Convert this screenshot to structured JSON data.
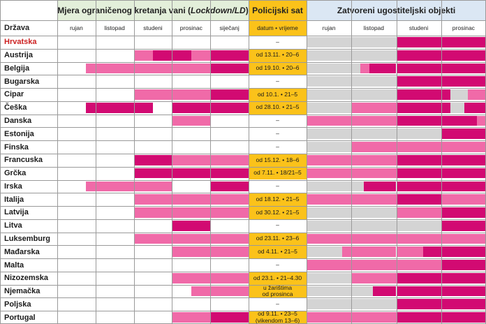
{
  "headers": {
    "group_lockdown_prefix": "Mjera ograničenog kretanja vani (",
    "group_lockdown_italic": "Lockdown/LD",
    "group_lockdown_suffix": ")",
    "group_curfew": "Policijski sat",
    "group_closed": "Zatvoreni ugostiteljski objekti",
    "country_col": "Država",
    "curfew_sub": "datum • vrijeme",
    "months_lockdown": [
      "rujan",
      "listopad",
      "studeni",
      "prosinac",
      "siječanj"
    ],
    "months_closed": [
      "rujan",
      "listopad",
      "studeni",
      "prosinac"
    ]
  },
  "colors": {
    "lockdown_header_bg": "#e3efda",
    "curfew_header_bg": "#fbc21a",
    "closed_header_bg": "#dbe7f4",
    "curfew_cell_bg": "#fbc21a",
    "light_pink": "#f06aa8",
    "magenta": "#d20a72",
    "grey": "#d4d4d4",
    "white": "#ffffff",
    "highlight_text": "#cc2121"
  },
  "rows": [
    {
      "country": "Hrvatska",
      "highlight": true,
      "curfew": [
        "–"
      ],
      "lockdown": [],
      "closed": [
        [
          0,
          0.5,
          "G"
        ],
        [
          0.5,
          0.75,
          "M"
        ],
        [
          0.75,
          1,
          "M"
        ]
      ]
    },
    {
      "country": "Austrija",
      "curfew": [
        "od 13.11. • 20–6"
      ],
      "lockdown": [
        [
          0.4,
          0.5,
          "L"
        ],
        [
          0.5,
          0.7,
          "M"
        ],
        [
          0.7,
          0.8,
          "L"
        ],
        [
          0.8,
          1,
          "M"
        ]
      ],
      "closed": [
        [
          0,
          0.5,
          "G"
        ],
        [
          0.5,
          0.75,
          "M"
        ],
        [
          0.75,
          1,
          "M"
        ]
      ]
    },
    {
      "country": "Belgija",
      "curfew": [
        "od 19.10. • 20–6"
      ],
      "lockdown": [
        [
          0.15,
          0.4,
          "L"
        ],
        [
          0.4,
          0.6,
          "L"
        ],
        [
          0.6,
          0.8,
          "L"
        ],
        [
          0.8,
          1,
          "M"
        ]
      ],
      "closed": [
        [
          0,
          0.3,
          "G"
        ],
        [
          0.3,
          0.35,
          "L"
        ],
        [
          0.35,
          0.5,
          "M"
        ],
        [
          0.5,
          1,
          "M"
        ]
      ]
    },
    {
      "country": "Bugarska",
      "curfew": [
        "–"
      ],
      "lockdown": [],
      "closed": [
        [
          0,
          0.5,
          "G"
        ],
        [
          0.5,
          0.75,
          "M"
        ],
        [
          0.75,
          1,
          "M"
        ]
      ]
    },
    {
      "country": "Cipar",
      "curfew": [
        "od 10.1. • 21–5"
      ],
      "lockdown": [
        [
          0.4,
          0.8,
          "L"
        ],
        [
          0.8,
          1,
          "M"
        ]
      ],
      "closed": [
        [
          0,
          0.5,
          "G"
        ],
        [
          0.5,
          0.8,
          "M"
        ],
        [
          0.8,
          0.9,
          "G"
        ],
        [
          0.9,
          1,
          "L"
        ]
      ]
    },
    {
      "country": "Češka",
      "curfew": [
        "od 28.10. • 21–5"
      ],
      "lockdown": [
        [
          0.15,
          0.5,
          "M"
        ],
        [
          0.6,
          0.8,
          "M"
        ],
        [
          0.8,
          1,
          "M"
        ]
      ],
      "closed": [
        [
          0,
          0.25,
          "G"
        ],
        [
          0.25,
          0.5,
          "L"
        ],
        [
          0.5,
          0.8,
          "M"
        ],
        [
          0.8,
          0.88,
          "G"
        ],
        [
          0.88,
          1,
          "M"
        ]
      ]
    },
    {
      "country": "Danska",
      "curfew": [
        "–"
      ],
      "lockdown": [
        [
          0.6,
          0.8,
          "L"
        ]
      ],
      "closed": [
        [
          0,
          0.5,
          "L"
        ],
        [
          0.5,
          0.75,
          "M"
        ],
        [
          0.75,
          0.95,
          "M"
        ],
        [
          0.95,
          1,
          "L"
        ]
      ]
    },
    {
      "country": "Estonija",
      "curfew": [
        "–"
      ],
      "lockdown": [],
      "closed": [
        [
          0,
          0.5,
          "G"
        ],
        [
          0.5,
          0.75,
          "G"
        ],
        [
          0.75,
          1,
          "M"
        ]
      ]
    },
    {
      "country": "Finska",
      "curfew": [
        "–"
      ],
      "lockdown": [],
      "closed": [
        [
          0,
          0.25,
          "G"
        ],
        [
          0.25,
          0.5,
          "L"
        ],
        [
          0.5,
          0.75,
          "L"
        ],
        [
          0.75,
          1,
          "L"
        ]
      ]
    },
    {
      "country": "Francuska",
      "curfew": [
        "od 15.12. • 18–6"
      ],
      "lockdown": [
        [
          0.4,
          0.6,
          "M"
        ],
        [
          0.6,
          0.8,
          "L"
        ],
        [
          0.8,
          1,
          "L"
        ]
      ],
      "closed": [
        [
          0,
          0.25,
          "L"
        ],
        [
          0.25,
          0.5,
          "L"
        ],
        [
          0.5,
          1,
          "M"
        ]
      ]
    },
    {
      "country": "Grčka",
      "curfew": [
        "od 7.11. • 18/21–5"
      ],
      "lockdown": [
        [
          0.4,
          0.8,
          "M"
        ],
        [
          0.8,
          1,
          "M"
        ]
      ],
      "closed": [
        [
          0,
          0.25,
          "L"
        ],
        [
          0.25,
          0.5,
          "L"
        ],
        [
          0.5,
          1,
          "M"
        ]
      ]
    },
    {
      "country": "Irska",
      "curfew": [
        "–"
      ],
      "lockdown": [
        [
          0.15,
          0.4,
          "L"
        ],
        [
          0.4,
          0.6,
          "L"
        ],
        [
          0.8,
          1,
          "M"
        ]
      ],
      "closed": [
        [
          0,
          0.25,
          "G"
        ],
        [
          0.25,
          0.32,
          "G"
        ],
        [
          0.32,
          0.5,
          "M"
        ],
        [
          0.5,
          1,
          "M"
        ]
      ]
    },
    {
      "country": "Italija",
      "curfew": [
        "od 18.12. • 21–5"
      ],
      "lockdown": [
        [
          0.4,
          0.6,
          "L"
        ],
        [
          0.6,
          0.8,
          "L"
        ],
        [
          0.8,
          1,
          "L"
        ]
      ],
      "closed": [
        [
          0,
          0.25,
          "L"
        ],
        [
          0.25,
          0.5,
          "L"
        ],
        [
          0.5,
          0.75,
          "M"
        ],
        [
          0.75,
          1,
          "L"
        ]
      ]
    },
    {
      "country": "Latvija",
      "curfew": [
        "od 30.12. • 21–5"
      ],
      "lockdown": [
        [
          0.4,
          0.6,
          "L"
        ],
        [
          0.6,
          0.8,
          "L"
        ],
        [
          0.8,
          1,
          "L"
        ]
      ],
      "closed": [
        [
          0,
          0.5,
          "G"
        ],
        [
          0.5,
          0.75,
          "L"
        ],
        [
          0.75,
          1,
          "M"
        ]
      ]
    },
    {
      "country": "Litva",
      "curfew": [
        "–"
      ],
      "lockdown": [
        [
          0.6,
          0.8,
          "M"
        ]
      ],
      "closed": [
        [
          0,
          0.5,
          "G"
        ],
        [
          0.5,
          0.75,
          "G"
        ],
        [
          0.75,
          1,
          "M"
        ]
      ]
    },
    {
      "country": "Luksemburg",
      "curfew": [
        "od 23.11. • 23–6"
      ],
      "lockdown": [
        [
          0.4,
          0.6,
          "L"
        ],
        [
          0.6,
          0.8,
          "L"
        ],
        [
          0.8,
          1,
          "L"
        ]
      ],
      "closed": [
        [
          0,
          0.25,
          "L"
        ],
        [
          0.25,
          0.5,
          "L"
        ],
        [
          0.5,
          1,
          "L"
        ]
      ]
    },
    {
      "country": "Mađarska",
      "curfew": [
        "od 4.11. • 21–5"
      ],
      "lockdown": [
        [
          0.6,
          0.8,
          "L"
        ],
        [
          0.8,
          1,
          "L"
        ]
      ],
      "closed": [
        [
          0,
          0.2,
          "G"
        ],
        [
          0.2,
          0.5,
          "L"
        ],
        [
          0.5,
          0.65,
          "L"
        ],
        [
          0.65,
          1,
          "M"
        ]
      ]
    },
    {
      "country": "Malta",
      "curfew": [
        "–"
      ],
      "lockdown": [],
      "closed": [
        [
          0,
          0.5,
          "L"
        ],
        [
          0.5,
          0.75,
          "L"
        ],
        [
          0.75,
          1,
          "M"
        ]
      ]
    },
    {
      "country": "Nizozemska",
      "curfew": [
        "od 23.1. • 21–4.30"
      ],
      "lockdown": [
        [
          0.6,
          0.8,
          "L"
        ],
        [
          0.8,
          1,
          "L"
        ]
      ],
      "closed": [
        [
          0,
          0.25,
          "G"
        ],
        [
          0.25,
          0.5,
          "L"
        ],
        [
          0.5,
          1,
          "M"
        ]
      ]
    },
    {
      "country": "Njemačka",
      "curfew": [
        "u žarištima",
        "od prosinca"
      ],
      "lockdown": [
        [
          0.7,
          0.8,
          "L"
        ],
        [
          0.8,
          1,
          "L"
        ]
      ],
      "closed": [
        [
          0,
          0.25,
          "G"
        ],
        [
          0.25,
          0.37,
          "G"
        ],
        [
          0.37,
          0.5,
          "M"
        ],
        [
          0.5,
          1,
          "M"
        ]
      ]
    },
    {
      "country": "Poljska",
      "curfew": [
        "–"
      ],
      "lockdown": [],
      "closed": [
        [
          0,
          0.5,
          "G"
        ],
        [
          0.5,
          1,
          "M"
        ]
      ]
    },
    {
      "country": "Portugal",
      "curfew": [
        "od 9.11. • 23–5",
        "(vikendom 13–6)"
      ],
      "lockdown": [
        [
          0.6,
          0.8,
          "L"
        ],
        [
          0.8,
          0.93,
          "M"
        ],
        [
          0.93,
          1,
          "M"
        ]
      ],
      "closed": [
        [
          0,
          0.25,
          "L"
        ],
        [
          0.25,
          0.5,
          "L"
        ],
        [
          0.5,
          1,
          "M"
        ]
      ]
    }
  ]
}
